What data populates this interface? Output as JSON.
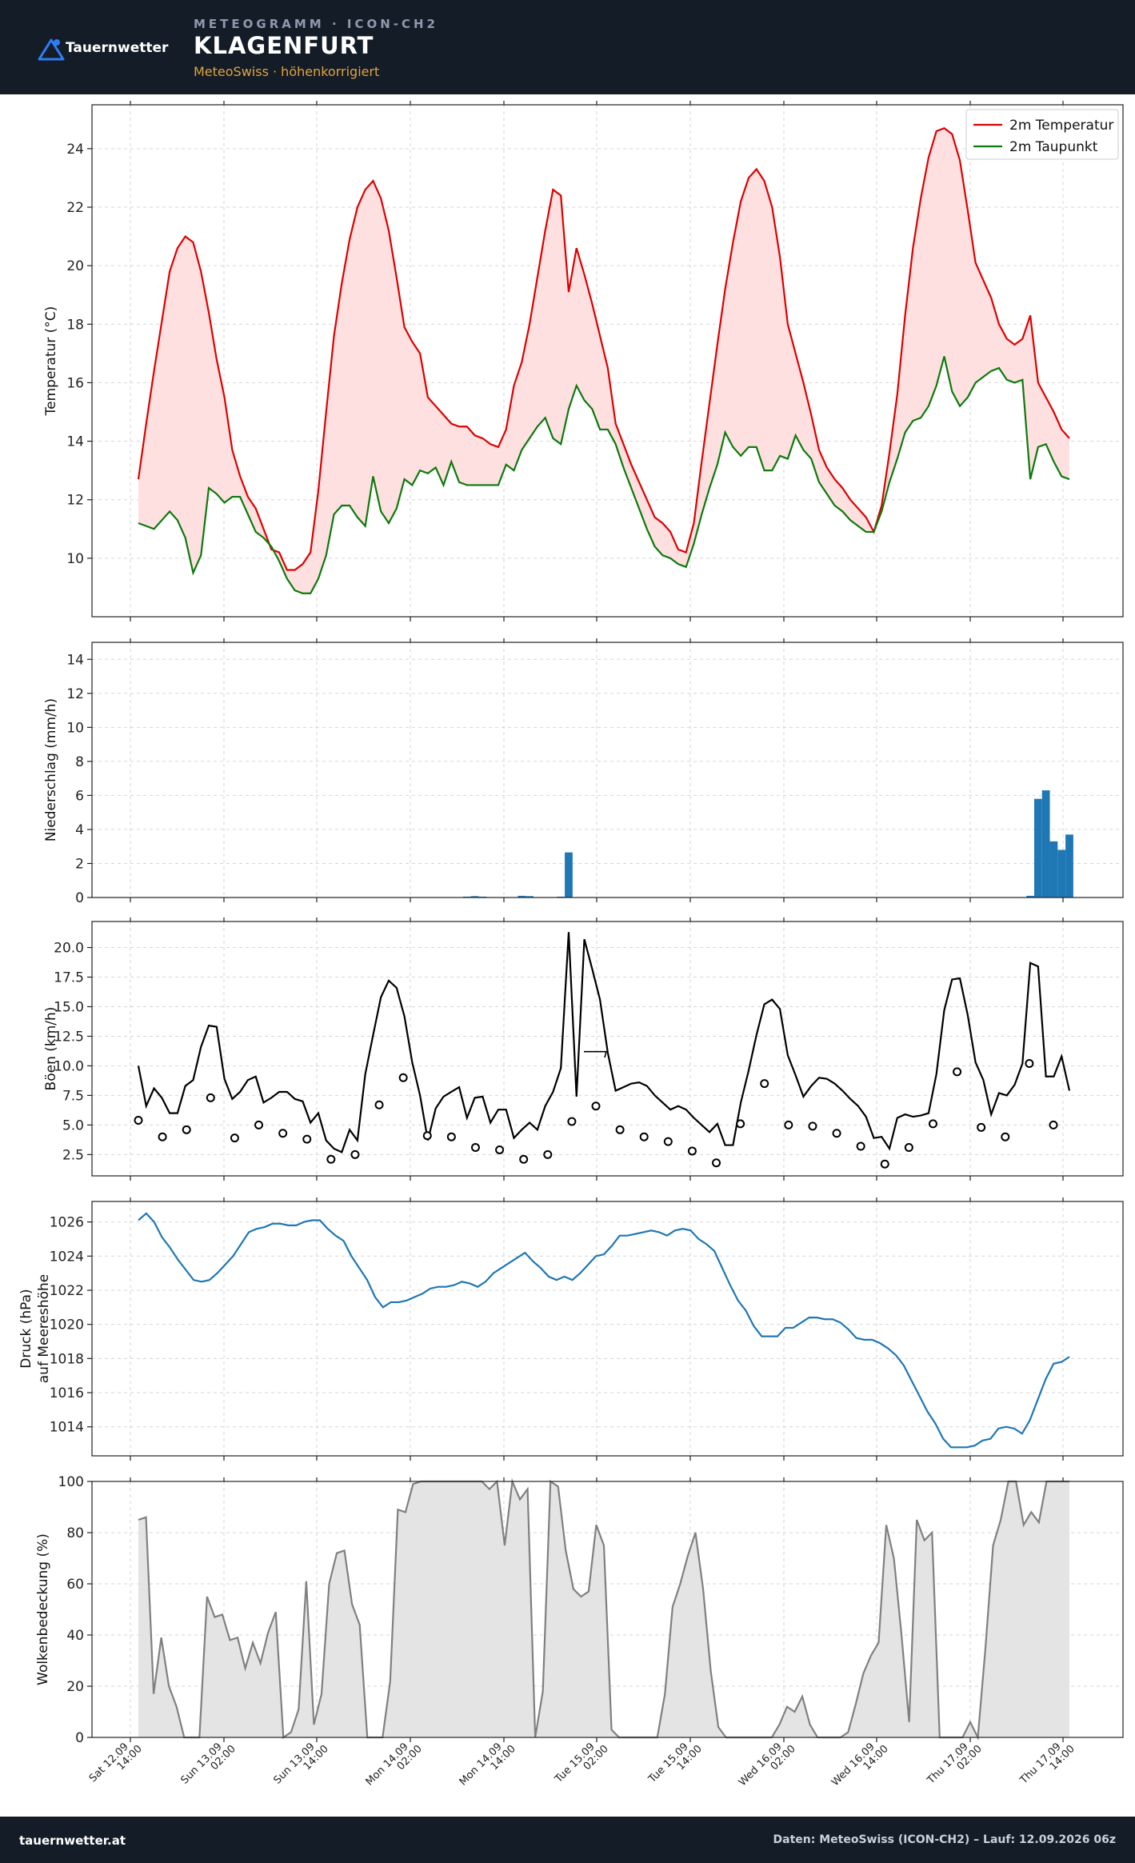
{
  "header": {
    "brand": "Tauernwetter",
    "supertitle": "METEOGRAMM · ICON-CH2",
    "title": "KLAGENFURT",
    "subtitle": "MeteoSwiss · höhenkorrigiert",
    "colors": {
      "background": "#141c28",
      "subtitle": "#e0a53a",
      "logo": "#2f7df6"
    }
  },
  "footer": {
    "left": "tauernwetter.at",
    "right": "Daten: MeteoSwiss (ICON-CH2) – Lauf: 12.09.2026 06z"
  },
  "chart_data": [
    {
      "type": "line",
      "id": "temperature",
      "ylabel": "Temperatur (°C)",
      "yticks": [
        10,
        12,
        14,
        16,
        18,
        20,
        22,
        24
      ],
      "ylim": [
        8.0,
        25.5
      ],
      "fill_between": true,
      "fill_color": "#ffe0e0",
      "legend_position": "top-right",
      "series": [
        {
          "name": "2m Temperatur",
          "color": "#dd0000",
          "values": [
            12.7,
            14.6,
            16.4,
            18.1,
            19.8,
            20.6,
            21.0,
            20.8,
            19.8,
            18.4,
            16.8,
            15.5,
            13.7,
            12.8,
            12.1,
            11.7,
            11.0,
            10.3,
            10.2,
            9.6,
            9.6,
            9.8,
            10.2,
            12.3,
            15.0,
            17.6,
            19.4,
            20.9,
            22.0,
            22.6,
            22.9,
            22.3,
            21.2,
            19.6,
            17.9,
            17.4,
            17.0,
            15.5,
            15.2,
            14.9,
            14.6,
            14.5,
            14.5,
            14.2,
            14.1,
            13.9,
            13.8,
            14.4,
            15.9,
            16.7,
            18.0,
            19.6,
            21.2,
            22.6,
            22.4,
            19.1,
            20.6,
            19.7,
            18.7,
            17.6,
            16.5,
            14.6,
            13.9,
            13.2,
            12.6,
            12.0,
            11.4,
            11.2,
            10.9,
            10.3,
            10.2,
            11.2,
            13.3,
            15.3,
            17.3,
            19.2,
            20.8,
            22.2,
            23.0,
            23.3,
            22.9,
            22.0,
            20.3,
            18.0,
            17.0,
            16.0,
            14.9,
            13.7,
            13.1,
            12.7,
            12.4,
            12.0,
            11.7,
            11.4,
            10.9,
            11.8,
            13.6,
            15.6,
            18.3,
            20.6,
            22.3,
            23.7,
            24.6,
            24.7,
            24.5,
            23.6,
            21.9,
            20.1,
            19.5,
            18.9,
            18.0,
            17.5,
            17.3,
            17.5,
            18.3,
            16.0,
            15.5,
            15.0,
            14.4,
            14.1
          ]
        },
        {
          "name": "2m Taupunkt",
          "color": "#0c7a0c",
          "values": [
            11.2,
            11.1,
            11.0,
            11.3,
            11.6,
            11.3,
            10.7,
            9.5,
            10.1,
            12.4,
            12.2,
            11.9,
            12.1,
            12.1,
            11.5,
            10.9,
            10.7,
            10.4,
            9.9,
            9.3,
            8.9,
            8.8,
            8.8,
            9.3,
            10.1,
            11.5,
            11.8,
            11.8,
            11.4,
            11.1,
            12.8,
            11.6,
            11.2,
            11.7,
            12.7,
            12.5,
            13.0,
            12.9,
            13.1,
            12.5,
            13.3,
            12.6,
            12.5,
            12.5,
            12.5,
            12.5,
            12.5,
            13.2,
            13.0,
            13.7,
            14.1,
            14.5,
            14.8,
            14.1,
            13.9,
            15.1,
            15.9,
            15.4,
            15.1,
            14.4,
            14.4,
            13.9,
            13.1,
            12.4,
            11.7,
            11.0,
            10.4,
            10.1,
            10.0,
            9.8,
            9.7,
            10.5,
            11.5,
            12.4,
            13.2,
            14.3,
            13.8,
            13.5,
            13.8,
            13.8,
            13.0,
            13.0,
            13.5,
            13.4,
            14.2,
            13.7,
            13.4,
            12.6,
            12.2,
            11.8,
            11.6,
            11.3,
            11.1,
            10.9,
            10.9,
            11.6,
            12.6,
            13.4,
            14.3,
            14.7,
            14.8,
            15.2,
            15.9,
            16.9,
            15.7,
            15.2,
            15.5,
            16.0,
            16.2,
            16.4,
            16.5,
            16.1,
            16.0,
            16.1,
            12.7,
            13.8,
            13.9,
            13.3,
            12.8,
            12.7
          ]
        }
      ]
    },
    {
      "type": "bar",
      "id": "precipitation",
      "ylabel": "Niederschlag (mm/h)",
      "yticks": [
        0,
        2,
        4,
        6,
        8,
        10,
        12,
        14
      ],
      "ylim": [
        0,
        15
      ],
      "color": "#1f77b4",
      "series": [
        {
          "name": "",
          "values": [
            0,
            0,
            0,
            0,
            0,
            0,
            0,
            0,
            0,
            0,
            0,
            0,
            0,
            0,
            0,
            0,
            0,
            0,
            0,
            0,
            0,
            0,
            0,
            0,
            0,
            0,
            0,
            0,
            0,
            0,
            0,
            0,
            0,
            0,
            0,
            0,
            0,
            0,
            0,
            0,
            0,
            0,
            0.05,
            0.08,
            0.05,
            0,
            0,
            0,
            0,
            0.1,
            0.08,
            0,
            0,
            0,
            0.05,
            2.65,
            0,
            0,
            0,
            0,
            0,
            0,
            0,
            0,
            0,
            0,
            0,
            0,
            0,
            0,
            0,
            0,
            0,
            0,
            0,
            0,
            0,
            0,
            0,
            0,
            0,
            0,
            0,
            0,
            0,
            0,
            0,
            0,
            0,
            0,
            0,
            0,
            0,
            0,
            0,
            0,
            0,
            0,
            0,
            0,
            0,
            0,
            0,
            0,
            0,
            0,
            0,
            0,
            0,
            0,
            0,
            0,
            0,
            0,
            0.1,
            5.8,
            6.3,
            3.3,
            2.8,
            3.7
          ]
        }
      ]
    },
    {
      "type": "line",
      "id": "wind",
      "ylabel": "Böen (km/h)",
      "yticks": [
        2.5,
        5.0,
        7.5,
        10.0,
        12.5,
        15.0,
        17.5,
        20.0
      ],
      "ylim": [
        0.7,
        22.2
      ],
      "series": [
        {
          "name": "",
          "color": "#000000",
          "values": [
            10.0,
            6.6,
            8.1,
            7.3,
            6.0,
            6.0,
            8.3,
            8.8,
            11.6,
            13.4,
            13.3,
            8.9,
            7.2,
            7.8,
            8.8,
            9.1,
            6.9,
            7.3,
            7.8,
            7.8,
            7.2,
            7.0,
            5.2,
            6.0,
            3.7,
            3.0,
            2.7,
            4.6,
            3.7,
            9.3,
            12.6,
            15.8,
            17.2,
            16.6,
            14.2,
            10.3,
            7.5,
            3.7,
            6.4,
            7.4,
            7.8,
            8.2,
            5.6,
            7.3,
            7.4,
            5.2,
            6.3,
            6.3,
            3.9,
            4.6,
            5.2,
            4.6,
            6.6,
            7.8,
            9.8,
            21.3,
            7.4,
            20.7,
            18.2,
            15.6,
            11.1,
            7.9,
            8.2,
            8.5,
            8.6,
            8.3,
            7.5,
            6.9,
            6.3,
            6.6,
            6.3,
            5.6,
            5.0,
            4.4,
            5.1,
            3.3,
            3.3,
            6.9,
            9.6,
            12.6,
            15.2,
            15.6,
            14.8,
            10.9,
            9.2,
            7.4,
            8.3,
            9.0,
            8.9,
            8.5,
            7.9,
            7.2,
            6.6,
            5.7,
            3.9,
            4.0,
            3.0,
            5.6,
            5.9,
            5.7,
            5.8,
            6.0,
            9.3,
            14.7,
            17.3,
            17.4,
            14.3,
            10.3,
            8.8,
            5.9,
            7.7,
            7.5,
            8.4,
            10.2,
            18.7,
            18.4,
            9.1,
            9.1,
            10.8,
            7.9
          ]
        },
        {
          "name": "",
          "color": "#000000",
          "marker": "circle",
          "values": [
            5.4,
            4.0,
            4.6,
            7.3,
            3.9,
            5.0,
            4.3,
            3.8,
            2.1,
            2.5,
            6.7,
            9.0,
            4.1,
            4.0,
            3.1,
            2.9,
            2.1,
            2.5,
            5.3,
            6.6,
            4.6,
            4.0,
            3.6,
            2.8,
            1.8,
            5.1,
            8.5,
            5.0,
            4.9,
            4.3,
            3.2,
            1.7,
            3.1,
            5.1,
            9.5,
            4.8,
            4.0,
            10.2,
            5.0
          ]
        }
      ],
      "annotations": [
        "wind-barb"
      ]
    },
    {
      "type": "line",
      "id": "pressure",
      "ylabel": "Druck (hPa)\nauf Meereshöhe",
      "yticks": [
        1014,
        1016,
        1018,
        1020,
        1022,
        1024,
        1026
      ],
      "ylim": [
        1012.3,
        1027.2
      ],
      "series": [
        {
          "name": "",
          "color": "#1f77b4",
          "values": [
            1026.1,
            1026.5,
            1026.0,
            1025.1,
            1024.5,
            1023.8,
            1023.2,
            1022.6,
            1022.5,
            1022.6,
            1023.0,
            1023.5,
            1024.0,
            1024.7,
            1025.4,
            1025.6,
            1025.7,
            1025.9,
            1025.9,
            1025.8,
            1025.8,
            1026.0,
            1026.1,
            1026.1,
            1025.6,
            1025.2,
            1024.9,
            1024.0,
            1023.3,
            1022.6,
            1021.6,
            1021.0,
            1021.3,
            1021.3,
            1021.4,
            1021.6,
            1021.8,
            1022.1,
            1022.2,
            1022.2,
            1022.3,
            1022.5,
            1022.4,
            1022.2,
            1022.5,
            1023.0,
            1023.3,
            1023.6,
            1023.9,
            1024.2,
            1023.7,
            1023.3,
            1022.8,
            1022.6,
            1022.8,
            1022.6,
            1023.0,
            1023.5,
            1024.0,
            1024.1,
            1024.6,
            1025.2,
            1025.2,
            1025.3,
            1025.4,
            1025.5,
            1025.4,
            1025.2,
            1025.5,
            1025.6,
            1025.5,
            1025.0,
            1024.7,
            1024.3,
            1023.3,
            1022.3,
            1021.4,
            1020.8,
            1019.9,
            1019.3,
            1019.3,
            1019.3,
            1019.8,
            1019.8,
            1020.1,
            1020.4,
            1020.4,
            1020.3,
            1020.3,
            1020.1,
            1019.7,
            1019.2,
            1019.1,
            1019.1,
            1018.9,
            1018.6,
            1018.2,
            1017.6,
            1016.7,
            1015.8,
            1014.9,
            1014.2,
            1013.3,
            1012.8,
            1012.8,
            1012.8,
            1012.9,
            1013.2,
            1013.3,
            1013.9,
            1014.0,
            1013.9,
            1013.6,
            1014.4,
            1015.6,
            1016.8,
            1017.7,
            1017.8,
            1018.1
          ]
        }
      ]
    },
    {
      "type": "area",
      "id": "clouds",
      "ylabel": "Wolkenbedeckung (%)",
      "yticks": [
        0,
        20,
        40,
        60,
        80,
        100
      ],
      "ylim": [
        0,
        100
      ],
      "fill_color": "#e4e4e4",
      "series": [
        {
          "name": "",
          "color": "#808080",
          "values": [
            85,
            86,
            17,
            39,
            20,
            12,
            0,
            0,
            0,
            55,
            47,
            48,
            38,
            39,
            27,
            37,
            29,
            41,
            49,
            0,
            2,
            11,
            61,
            5,
            17,
            60,
            72,
            73,
            52,
            44,
            0,
            0,
            0,
            22,
            89,
            88,
            99,
            100,
            100,
            100,
            100,
            100,
            100,
            100,
            100,
            100,
            97,
            100,
            75,
            100,
            93,
            97,
            0,
            18,
            100,
            98,
            73,
            58,
            55,
            57,
            83,
            75,
            3,
            0,
            0,
            0,
            0,
            0,
            0,
            17,
            51,
            60,
            71,
            80,
            58,
            26,
            4,
            0,
            0,
            0,
            0,
            0,
            0,
            0,
            5,
            12,
            10,
            16,
            5,
            0,
            0,
            0,
            0,
            2,
            13,
            25,
            32,
            37,
            83,
            70,
            40,
            6,
            85,
            77,
            80,
            0,
            0,
            0,
            0,
            6,
            0,
            35,
            75,
            85,
            100,
            100,
            83,
            88,
            84,
            100,
            100,
            100,
            100
          ]
        }
      ]
    }
  ],
  "x_axis": {
    "ticks": [
      {
        "line1": "Sat 12.09",
        "line2": "14:00"
      },
      {
        "line1": "Sun 13.09",
        "line2": "02:00"
      },
      {
        "line1": "Sun 13.09",
        "line2": "14:00"
      },
      {
        "line1": "Mon 14.09",
        "line2": "02:00"
      },
      {
        "line1": "Mon 14.09",
        "line2": "14:00"
      },
      {
        "line1": "Tue 15.09",
        "line2": "02:00"
      },
      {
        "line1": "Tue 15.09",
        "line2": "14:00"
      },
      {
        "line1": "Wed 16.09",
        "line2": "02:00"
      },
      {
        "line1": "Wed 16.09",
        "line2": "14:00"
      },
      {
        "line1": "Thu 17.09",
        "line2": "02:00"
      },
      {
        "line1": "Thu 17.09",
        "line2": "14:00"
      }
    ]
  }
}
